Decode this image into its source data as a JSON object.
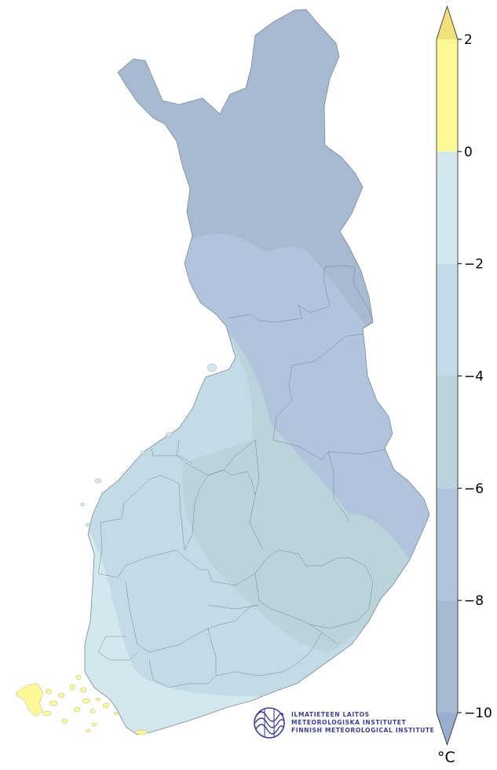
{
  "colorbar": {
    "unit": "°C",
    "ticks": [
      "2",
      "0",
      "−2",
      "−4",
      "−6",
      "−8",
      "−10"
    ],
    "bands": [
      {
        "range": "> 2",
        "color": "#f2e07a"
      },
      {
        "range": "0 – 2",
        "color": "#fdfa96"
      },
      {
        "range": "-2 – 0",
        "color": "#d2e8ec"
      },
      {
        "range": "-4 – -2",
        "color": "#c3dbe7"
      },
      {
        "range": "-6 – -4",
        "color": "#bbd3db"
      },
      {
        "range": "-8 – -6",
        "color": "#b0c4de"
      },
      {
        "range": "-10 – -8",
        "color": "#a6bbd1"
      },
      {
        "range": "< -10",
        "color": "#9aaed0"
      }
    ]
  },
  "logo": {
    "line1": "ILMATIETEEN LAITOS",
    "line2": "METEOROLOGISKA INSTITUTET",
    "line3": "FINNISH METEOROLOGICAL INSTITUTE",
    "color": "#3b3f98"
  }
}
